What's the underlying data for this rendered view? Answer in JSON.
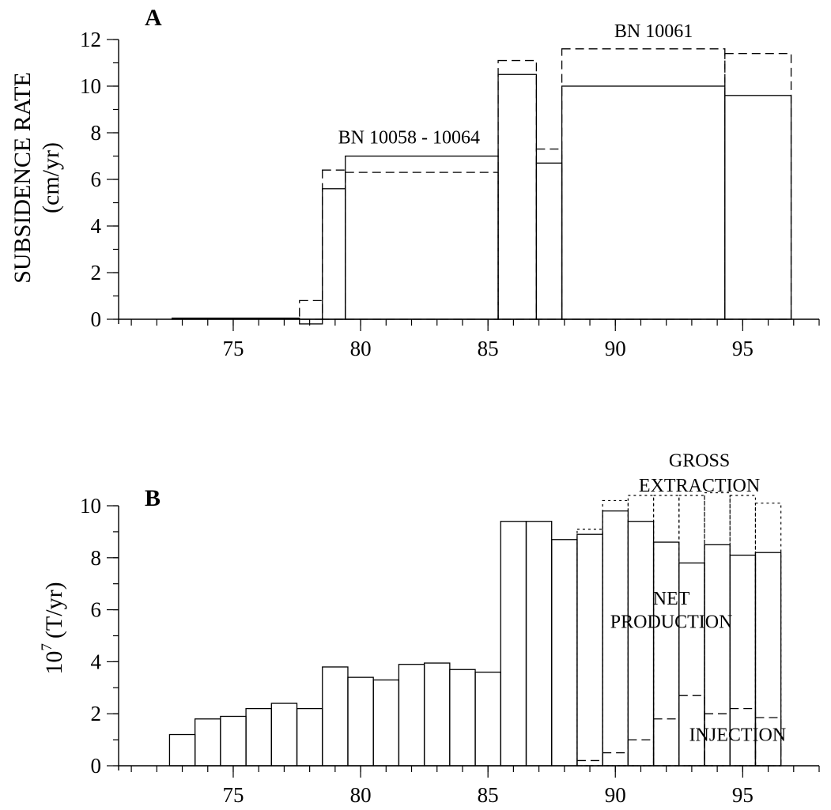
{
  "chart_data": [
    {
      "type": "bar",
      "panel_label": "A",
      "title": "",
      "xlabel": "",
      "ylabel_line1": "SUBSIDENCE RATE",
      "ylabel_line2": "(cm/yr)",
      "xlim": [
        70.5,
        98
      ],
      "ylim": [
        0,
        12
      ],
      "xticks": [
        "75",
        "80",
        "85",
        "90",
        "95"
      ],
      "xtick_values": [
        75,
        80,
        85,
        90,
        95
      ],
      "yticks": [
        "0",
        "2",
        "4",
        "6",
        "8",
        "10",
        "12"
      ],
      "ytick_values": [
        0,
        2,
        4,
        6,
        8,
        10,
        12
      ],
      "series": [
        {
          "name": "BN 10058 - 10064",
          "style": "solid",
          "bins": [
            {
              "x0": 72.6,
              "x1": 77.6,
              "value": 0.05
            },
            {
              "x0": 77.6,
              "x1": 78.5,
              "value": -0.2
            },
            {
              "x0": 78.5,
              "x1": 79.4,
              "value": 5.6
            },
            {
              "x0": 79.4,
              "x1": 85.4,
              "value": 7.0
            },
            {
              "x0": 85.4,
              "x1": 86.9,
              "value": 10.5
            },
            {
              "x0": 86.9,
              "x1": 87.9,
              "value": 6.7
            },
            {
              "x0": 87.9,
              "x1": 94.3,
              "value": 10.0
            },
            {
              "x0": 94.3,
              "x1": 96.9,
              "value": 9.6
            }
          ]
        },
        {
          "name": "BN 10061",
          "style": "dashed",
          "bins": [
            {
              "x0": 77.6,
              "x1": 78.5,
              "value": 0.8
            },
            {
              "x0": 78.5,
              "x1": 79.4,
              "value": 6.4
            },
            {
              "x0": 79.4,
              "x1": 85.4,
              "value": 6.3
            },
            {
              "x0": 85.4,
              "x1": 86.9,
              "value": 11.1
            },
            {
              "x0": 86.9,
              "x1": 87.9,
              "value": 7.3
            },
            {
              "x0": 87.9,
              "x1": 94.3,
              "value": 11.6
            },
            {
              "x0": 94.3,
              "x1": 96.9,
              "value": 11.4
            }
          ]
        }
      ],
      "annotations": [
        {
          "text": "BN  10058 - 10064",
          "x": 81.9,
          "y": 7.55
        },
        {
          "text": "BN  10061",
          "x": 91.5,
          "y": 12.1
        }
      ]
    },
    {
      "type": "bar",
      "panel_label": "B",
      "title": "",
      "xlabel": "",
      "ylabel_base": "10",
      "ylabel_exp": "7",
      "ylabel_unit": "(T/yr)",
      "xlim": [
        70.5,
        98
      ],
      "ylim": [
        0,
        10
      ],
      "xticks": [
        "75",
        "80",
        "85",
        "90",
        "95"
      ],
      "xtick_values": [
        75,
        80,
        85,
        90,
        95
      ],
      "yticks": [
        "0",
        "2",
        "4",
        "6",
        "8",
        "10"
      ],
      "ytick_values": [
        0,
        2,
        4,
        6,
        8,
        10
      ],
      "series": [
        {
          "name": "NET PRODUCTION",
          "style": "solid",
          "x_start": 72.5,
          "bin_width": 1,
          "values": [
            1.2,
            1.8,
            1.9,
            2.2,
            2.4,
            2.2,
            3.8,
            3.4,
            3.3,
            3.9,
            3.95,
            3.7,
            3.6,
            9.4,
            9.4,
            8.7,
            8.9,
            9.8,
            9.4,
            8.6,
            7.8,
            8.5,
            8.1,
            8.2
          ]
        },
        {
          "name": "GROSS EXTRACTION",
          "style": "dotted",
          "x_start": 88.5,
          "bin_width": 1,
          "values": [
            9.1,
            10.2,
            10.4,
            10.4,
            10.4,
            10.5,
            10.4,
            10.1
          ]
        },
        {
          "name": "INJECTION",
          "style": "dashed",
          "x_start": 88.5,
          "bin_width": 1,
          "values": [
            0.2,
            0.5,
            1.0,
            1.8,
            2.7,
            2.0,
            2.2,
            1.85
          ]
        }
      ],
      "annotations": [
        {
          "text": "GROSS",
          "x": 93.3,
          "y": 11.5
        },
        {
          "text": "EXTRACTION",
          "x": 93.3,
          "y": 10.55
        },
        {
          "text": "NET",
          "x": 92.2,
          "y": 6.2
        },
        {
          "text": "PRODUCTION",
          "x": 92.2,
          "y": 5.3
        },
        {
          "text": "INJECTION",
          "x": 94.8,
          "y": 0.95
        }
      ]
    }
  ]
}
